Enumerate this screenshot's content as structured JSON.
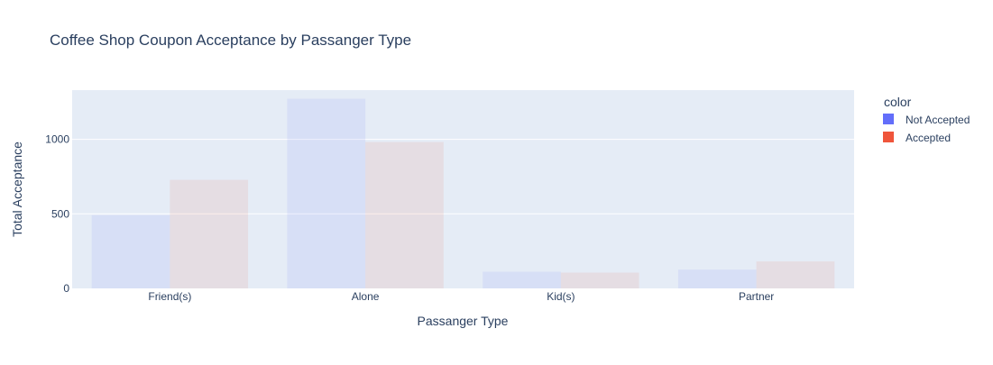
{
  "chart_data": {
    "type": "bar",
    "title": "Coffee Shop Coupon Acceptance by Passanger Type",
    "xlabel": "Passanger Type",
    "ylabel": "Total Acceptance",
    "categories": [
      "Friend(s)",
      "Alone",
      "Kid(s)",
      "Partner"
    ],
    "series": [
      {
        "name": "Not Accepted",
        "values": [
          491,
          1272,
          112,
          126
        ],
        "color": "#636efa"
      },
      {
        "name": "Accepted",
        "values": [
          728,
          982,
          106,
          181
        ],
        "color": "#ef553b"
      }
    ],
    "ylim": [
      0,
      1330
    ],
    "yticks": [
      0,
      500,
      1000
    ],
    "grid": true,
    "bar_opacity": 0.1,
    "plot_background": "#e5ecf6",
    "legend": {
      "title": "color",
      "position": "right"
    }
  }
}
